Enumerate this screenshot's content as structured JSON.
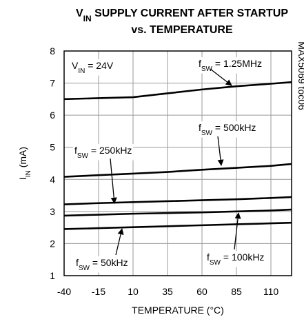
{
  "chart_data": {
    "type": "line",
    "title": {
      "main": "V",
      "sub": "IN",
      "rest": " SUPPLY CURRENT AFTER STARTUP"
    },
    "subtitle": "vs. TEMPERATURE",
    "x_label": "TEMPERATURE (°C)",
    "y_label": {
      "main": "I",
      "sub": "IN",
      "rest": " (mA)"
    },
    "side_note": "MAX5069 toc06",
    "condition": {
      "main": "V",
      "sub": "IN",
      "rest": " = 24V"
    },
    "x": [
      -40,
      -15,
      10,
      35,
      60,
      85,
      110,
      125
    ],
    "series": [
      {
        "label": {
          "main": "f",
          "sub": "SW",
          "rest": " = 1.25MHz"
        },
        "color": "#000000",
        "values": [
          6.5,
          6.53,
          6.56,
          6.68,
          6.8,
          6.9,
          6.98,
          7.03
        ]
      },
      {
        "label": {
          "main": "f",
          "sub": "SW",
          "rest": " = 500kHz"
        },
        "color": "#000000",
        "values": [
          4.08,
          4.13,
          4.18,
          4.23,
          4.3,
          4.36,
          4.42,
          4.48
        ]
      },
      {
        "label": {
          "main": "f",
          "sub": "SW",
          "rest": " = 250kHz"
        },
        "color": "#000000",
        "values": [
          3.22,
          3.26,
          3.29,
          3.32,
          3.35,
          3.38,
          3.42,
          3.45
        ]
      },
      {
        "label": {
          "main": "f",
          "sub": "SW",
          "rest": " = 100kHz"
        },
        "color": "#000000",
        "values": [
          2.87,
          2.9,
          2.93,
          2.95,
          2.97,
          3.0,
          3.03,
          3.06
        ]
      },
      {
        "label": {
          "main": "f",
          "sub": "SW",
          "rest": " = 50kHz"
        },
        "color": "#000000",
        "values": [
          2.45,
          2.48,
          2.51,
          2.54,
          2.57,
          2.6,
          2.63,
          2.65
        ]
      }
    ],
    "xlim": [
      -40,
      125
    ],
    "ylim": [
      1,
      8
    ],
    "xticks": [
      -40,
      -15,
      10,
      35,
      60,
      85,
      110
    ],
    "yticks": [
      1,
      2,
      3,
      4,
      5,
      6,
      7,
      8
    ],
    "grid": true
  }
}
